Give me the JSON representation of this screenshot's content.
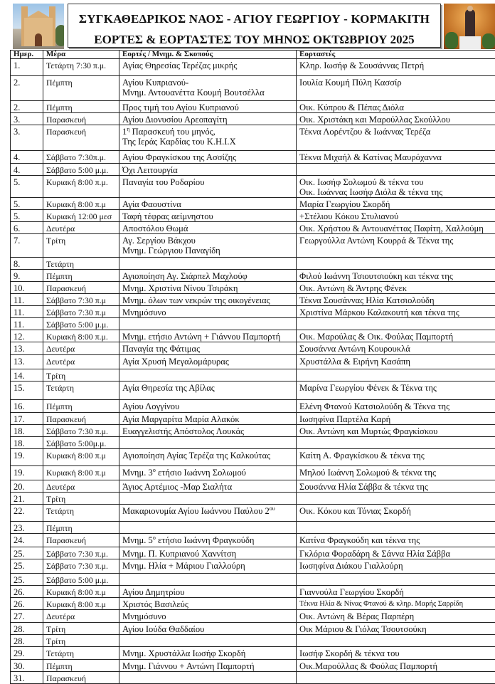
{
  "header": {
    "title": "ΣΥΓΚΑΘΕΔΡΙΚΟΣ ΝΑΟΣ - ΑΓΙΟΥ ΓΕΩΡΓΙΟΥ - ΚΟΡΜΑΚΙΤΗ",
    "subtitle": "ΕΟΡΤΕΣ & ΕΟΡΤΑΣΤΕΣ ΤΟΥ ΜΗΝΟΣ ΟΚΤΩΒΡΙΟΥ 2025",
    "left_image": "church-photo",
    "right_image": "saint-statue-photo"
  },
  "table": {
    "columns": [
      "Ημερ.",
      "Μέρα",
      "Εορτές   / Μνημ. & Σκοπούς",
      "Εορταστές"
    ],
    "rows": [
      {
        "day": "1.",
        "weekday": "Τετάρτη 7:30 π.μ.",
        "event": [
          "Αγίας Θηρεσίας Τερέζας μικρής"
        ],
        "celebrants": [
          "Κληρ. Ιωσήφ & Σουσάννας Πετρή"
        ]
      },
      {
        "day": "2.",
        "weekday": "Πέμπτη",
        "event": [
          "Αγίου Κυπριανού-",
          "Μνημ. Αντουανέττα Κουμή Βουτσέλλα"
        ],
        "celebrants": [
          "Ιουλία Κουμή Πύλη Κασσίρ"
        ]
      },
      {
        "day": "2.",
        "weekday": "Πέμπτη",
        "event": [
          "Προς τιμή του Αγίου Κυπριανού"
        ],
        "celebrants": [
          "Οικ. Κύπρου & Πέπας Διόλα"
        ]
      },
      {
        "day": "3.",
        "weekday": "Παρασκευή",
        "event": [
          "Αγίου  Διονυσίου  Αρεοπαγίτη"
        ],
        "celebrants": [
          "Οικ. Χριστάκη και Μαρούλλας Σκούλλου"
        ]
      },
      {
        "day": "3.",
        "weekday": "Παρασκευή",
        "event": [
          {
            "pre": "1",
            "sup": "η",
            "post": " Παρασκευή του μηνός,"
          },
          "Της Ιεράς Καρδίας του Κ.Η.Ι.Χ"
        ],
        "celebrants": [
          "Τέκνα Λορέντζου & Ιωάννας Τερέζα"
        ]
      },
      {
        "day": "4.",
        "weekday": "Σάββατο 7:30π.μ.",
        "event": [
          "Αγίου Φραγκίσκου της Ασσίζης"
        ],
        "celebrants": [
          "Τέκνα Μιχαήλ & Κατίνας  Μαυρόχαννα"
        ]
      },
      {
        "day": "4.",
        "weekday": "Σάββατο 5:00 μ.μ.",
        "event": [
          "Όχι Λειτουργία"
        ],
        "celebrants": []
      },
      {
        "day": "5.",
        "weekday": "Κυριακή 8:00 π.μ.",
        "event": [
          "Παναγία του Ροδαρίου"
        ],
        "celebrants": [
          "Οικ. Ιωσήφ Σολωμού & τέκνα του",
          "Οικ. Ιωάννας Ιωσήφ Διόλα & τέκνα της"
        ]
      },
      {
        "day": "5.",
        "weekday": "Κυριακή 8:00 π.μ",
        "event": [
          " Αγία Φαουστίνα"
        ],
        "celebrants": [
          "Μαρία Γεωργίου Σκορδή"
        ]
      },
      {
        "day": "5.",
        "weekday": "Κυριακή 12:00 μεσ",
        "event": [
          "Ταφή τέφρας αείμνηστου"
        ],
        "celebrants": [
          "+Στέλιου Κόκου Στυλιανού"
        ]
      },
      {
        "day": "6.",
        "weekday": "Δευτέρα",
        "event": [
          "Αποστόλου Θωμά"
        ],
        "celebrants": [
          "Οικ. Χρήστου & Αντουανέττας Παφίτη, Χαλλούμη"
        ]
      },
      {
        "day": "7.",
        "weekday": "Τρίτη",
        "event": [
          "Αγ. Σεργίου Βάκχου",
          "Μνημ. Γεώργιου Παναγίδη"
        ],
        "celebrants": [
          "Γεωργούλλα Αντώνη Κουρρά & Τέκνα της"
        ]
      },
      {
        "day": "8.",
        "weekday": "Τετάρτη",
        "event": [],
        "celebrants": []
      },
      {
        "day": "9.",
        "weekday": "Πέμπτη",
        "event": [
          "Αγιοποίηση Αγ. Σιάρπελ Μαχλούφ"
        ],
        "celebrants": [
          "Φιλού Ιωάννη Τσιουτσιούκη και τέκνα της"
        ]
      },
      {
        "day": "10.",
        "weekday": "Παρασκευή",
        "event": [
          "Μνημ. Χριστίνα Νίνου Τσιράκη"
        ],
        "celebrants": [
          "Οικ. Αντώνη & Άντρης Φένεκ"
        ]
      },
      {
        "day": "11.",
        "weekday": "Σάββατο 7:30 π.μ",
        "event": [
          "Μνημ. όλων των νεκρών της οικογένειας"
        ],
        "celebrants": [
          "Τέκνα Σουσάννας Ηλία Κατσιολούδη"
        ]
      },
      {
        "day": "11.",
        "weekday": "Σάββατο 7:30 π.μ",
        "event": [
          "Μνημόσυνο"
        ],
        "celebrants": [
          "Χριστίνα Μάρκου Καλακουτή και τέκνα της"
        ]
      },
      {
        "day": "11.",
        "weekday": "Σάββατο 5:00 μ.μ.",
        "event": [],
        "celebrants": []
      },
      {
        "day": "12.",
        "weekday": "Κυριακή 8:00 π.μ.",
        "event": [
          "Μνημ.  ετήσιο Αντώνη + Γιάννου Παμπορτή"
        ],
        "celebrants": [
          "Οικ. Μαρούλας & Οικ. Φούλας Παμπορτή"
        ]
      },
      {
        "day": "13.",
        "weekday": "Δευτέρα",
        "event": [
          "Παναγία της Φάτιμας"
        ],
        "celebrants": [
          "Σουσάννα Αντώνη Κουρουκλά"
        ]
      },
      {
        "day": "13.",
        "weekday": "Δευτέρα",
        "event": [
          "Αγία Χρυσή Μεγαλομάρυρας"
        ],
        "celebrants": [
          "Χρυστάλλα & Ειρήνη Κασάπη"
        ]
      },
      {
        "day": "14.",
        "weekday": "Τρίτη",
        "event": [],
        "celebrants": []
      },
      {
        "day": "15.",
        "weekday": "Τετάρτη",
        "event": [
          "Αγία Θηρεσία της Αβίλας"
        ],
        "celebrants": [
          "Μαρίνα Γεωργίου Φένεκ & Τέκνα της"
        ]
      },
      {
        "day": "16.",
        "weekday": "Πέμπτη",
        "event": [
          "Αγίου Λογγίνου"
        ],
        "celebrants": [
          "Ελένη Φτανού Κατσιολούδη & Τέκνα της"
        ]
      },
      {
        "day": "17.",
        "weekday": "Παρασκευή",
        "event": [
          "Αγία Μαργαρίτα Μαρία Αλακόκ"
        ],
        "celebrants": [
          "Ιωσηφίνα  Παρτέλα Καρή"
        ]
      },
      {
        "day": "18.",
        "weekday": "Σάββατο 7:30 π.μ.",
        "event": [
          "Ευαγγελιστής Απόστολος Λουκάς"
        ],
        "celebrants": [
          "Οικ. Αντώνη και Μυρτώς Φραγκίσκου"
        ]
      },
      {
        "day": "18.",
        "weekday": "Σάββατο 5:00μ.μ.",
        "event": [],
        "celebrants": []
      },
      {
        "day": "19.",
        "weekday": "Κυριακή 8:00 π.μ",
        "event": [
          " Αγιοποίηση Αγίας Τερέζα της Καλκούτας"
        ],
        "celebrants": [
          "Καίτη Α. Φραγκίσκου & τέκνα της"
        ]
      },
      {
        "day": "19.",
        "weekday": "Κυριακή 8:00 π.μ",
        "event": [
          {
            "pre": "Μνημ. 3",
            "sup": "ο",
            "post": " ετήσιο Ιωάννη Σολωμού"
          }
        ],
        "celebrants": [
          "Μηλού Ιωάννη Σολωμού & τέκνα της"
        ]
      },
      {
        "day": "20.",
        "weekday": "Δευτέρα",
        "event": [
          " Άγιος   Αρτέμιος -Μαρ Σιαλήτα"
        ],
        "celebrants": [
          "Σουσάννα Ηλία Σάββα & τέκνα της"
        ]
      },
      {
        "day": "21.",
        "weekday": "Τρίτη",
        "event": [],
        "celebrants": []
      },
      {
        "day": "22.",
        "weekday": "Τετάρτη",
        "event": [
          {
            "pre": "Μακαριονυμία Αγίου Ιωάννου Παύλου 2",
            "sup": "ου",
            "post": ""
          }
        ],
        "celebrants": [
          "Οικ. Κόκου και Τόνιας Σκορδή"
        ]
      },
      {
        "day": "23.",
        "weekday": "Πέμπτη",
        "event": [],
        "celebrants": []
      },
      {
        "day": "24.",
        "weekday": "Παρασκευή",
        "event": [
          {
            "pre": " Μνημ. 5",
            "sup": "ο",
            "post": " ετήσιο Ιωάννη Φραγκούδη"
          }
        ],
        "celebrants": [
          "Κατίνα Φραγκούδη και τέκνα της"
        ]
      },
      {
        "day": "25.",
        "weekday": "Σάββατο 7:30 π.μ.",
        "event": [
          "Μνημ. Π. Κυπριανού Χαννίτση"
        ],
        "celebrants": [
          "Γκλόρια Φοραδάρη & Σάννα Ηλία Σάββα"
        ]
      },
      {
        "day": "25.",
        "weekday": "Σάββατο 7:30 π.μ.",
        "event": [
          "Μνημ. Ηλία + Μάριου Γιαλλούρη"
        ],
        "celebrants": [
          "Ιωσηφίνα Διάκου Γιαλλούρη"
        ]
      },
      {
        "day": "25.",
        "weekday": "Σάββατο 5:00 μ.μ.",
        "event": [],
        "celebrants": []
      },
      {
        "day": "26.",
        "weekday": "Κυριακή 8:00 π.μ",
        "event": [
          "Αγίου  Δημητρίου"
        ],
        "celebrants": [
          "Γιαννούλα Γεωργίου Σκορδή"
        ]
      },
      {
        "day": "26.",
        "weekday": "Κυριακή 8:00 π.μ",
        "event": [
          "Χριστός Βασιλεύς"
        ],
        "celebrants": [
          "Τέκνα Ηλία & Νίνας Φτανού & κληρ. Μαρής Σαρρίδη"
        ]
      },
      {
        "day": "27.",
        "weekday": "Δευτέρα",
        "event": [
          " Μνημόσυνο"
        ],
        "celebrants": [
          "Οικ. Αντώνη & Βέρας Παρπέρη"
        ]
      },
      {
        "day": "28.",
        "weekday": "Τρίτη",
        "event": [
          "Αγίου Ιούδα Θαδδαίου"
        ],
        "celebrants": [
          "Οικ Μάριου & Γιόλας Τσουτσούκη"
        ]
      },
      {
        "day": "28.",
        "weekday": "Τρίτη",
        "event": [],
        "celebrants": []
      },
      {
        "day": "29.",
        "weekday": "Τετάρτη",
        "event": [
          "Μνημ. Χρυστάλλα Ιωσήφ Σκορδή"
        ],
        "celebrants": [
          "Ιωσήφ Σκορδή & τέκνα του"
        ]
      },
      {
        "day": "30.",
        "weekday": "Πέμπτη",
        "event": [
          "Μνημ. Γιάννου + Αντώνη Παμπορτή"
        ],
        "celebrants": [
          "Οικ.Μαρούλλας & Φούλας Παμπορτή"
        ]
      },
      {
        "day": "31.",
        "weekday": "Παρασκευή",
        "event": [],
        "celebrants": []
      }
    ]
  }
}
